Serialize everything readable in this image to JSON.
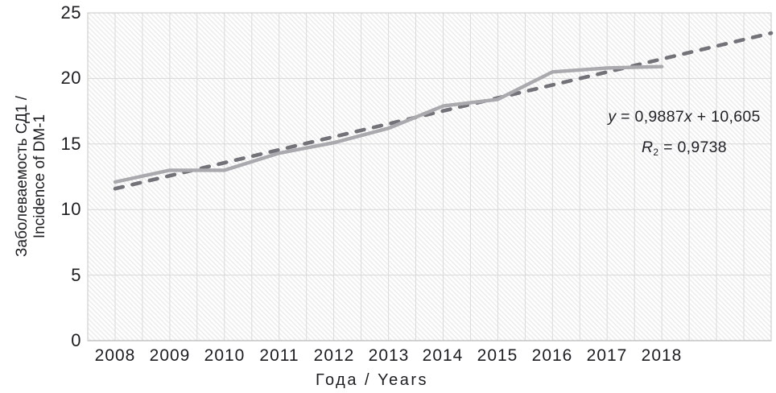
{
  "chart_data": {
    "type": "line",
    "title": "",
    "categories": [
      "2008",
      "2009",
      "2010",
      "2011",
      "2012",
      "2013",
      "2014",
      "2015",
      "2016",
      "2017",
      "2018"
    ],
    "series": [
      {
        "name": "incidence-data",
        "style": "solid",
        "values": [
          12.1,
          13.0,
          13.0,
          14.3,
          15.1,
          16.2,
          17.9,
          18.4,
          20.5,
          20.8,
          20.9
        ]
      },
      {
        "name": "linear-trendline",
        "style": "dashed",
        "equation": "y = 0,9887x + 10,605",
        "r2_text": "R₂ = 0,9738",
        "slope": 0.9887,
        "intercept": 10.605,
        "x_index_at_2008": 1,
        "x_index_at_line_end": 13
      }
    ],
    "xlabel": "Года / Years",
    "ylabel": "Заболеваемость СД1 / Incidence of DM-1",
    "ylim": [
      0,
      25
    ],
    "yticks": [
      0,
      5,
      10,
      15,
      20,
      25
    ],
    "grid": {
      "vertical_minor": true,
      "horizontal_major": true
    },
    "legend": "none",
    "plot_background": "diagonal-hatch"
  },
  "axes": {
    "y_title_line1": "Заболеваемость СД1 /",
    "y_title_line2": "Incidence of DM-1",
    "x_title": "Года / Years"
  },
  "annotation": {
    "eq_y": "y",
    "eq_mid": " = 0,9887",
    "eq_x": "x",
    "eq_end": " + 10,605",
    "equation_full": "y = 0,9887x + 10,605",
    "r_label": "R",
    "r_sub": "2",
    "r_value": " = 0,9738",
    "r_full": "R₂ = 0,9738"
  },
  "colors": {
    "data_line": "#a9a9ae",
    "trend_line": "#727278",
    "gridline": "#dadada",
    "h_gridline": "#d8d8d8",
    "plot_border": "#d0d0d0",
    "axis_line": "#c6c6c6",
    "hatch_line": "#ececec",
    "text": "#1d1d22"
  }
}
